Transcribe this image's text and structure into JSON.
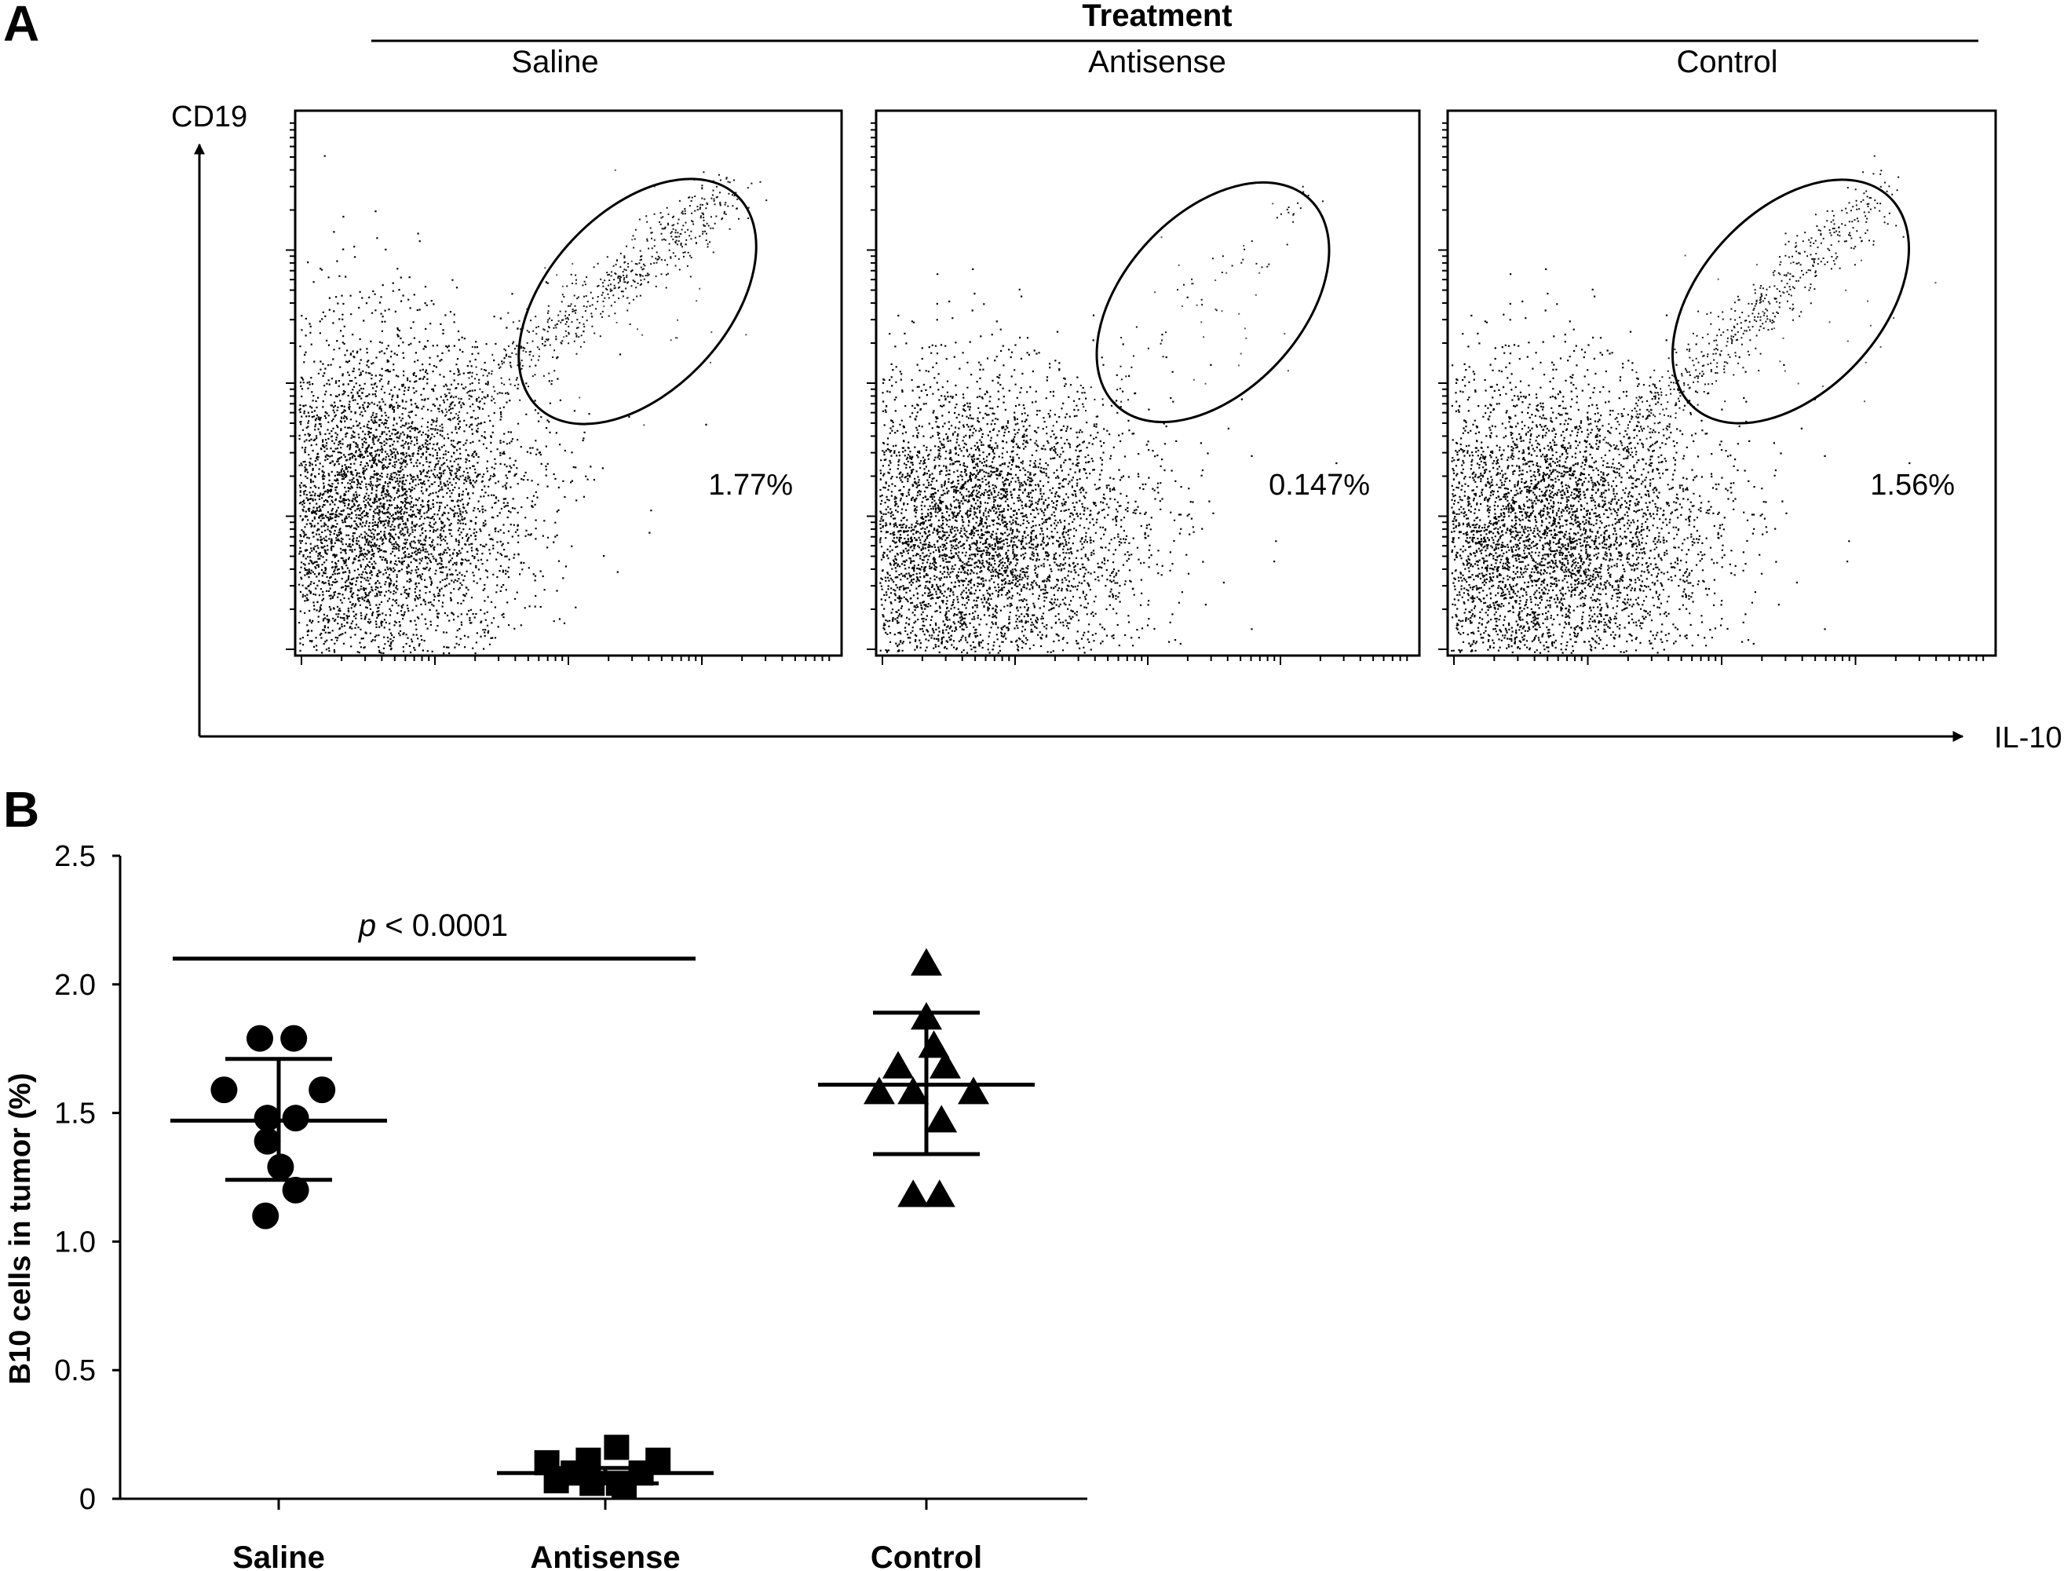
{
  "panel_a": {
    "letter": "A",
    "header": "Treatment",
    "y_axis_label": "CD19",
    "x_axis_label": "IL-10",
    "plots": [
      {
        "label": "Saline",
        "percentage": "1.77%"
      },
      {
        "label": "Antisense",
        "percentage": "0.147%"
      },
      {
        "label": "Control",
        "percentage": "1.56%"
      }
    ]
  },
  "panel_b": {
    "letter": "B",
    "significance_text": "< 0.0001",
    "significance_p": "p"
  },
  "chart_data": {
    "type": "scatter",
    "ylabel": "B10 cells in tumor (%)",
    "xlabel": "",
    "ylim": [
      0,
      2.5
    ],
    "yticks": [
      "0",
      "0.5",
      "1.0",
      "1.5",
      "2.0",
      "2.5"
    ],
    "categories": [
      "Saline",
      "Antisense",
      "Control"
    ],
    "series": [
      {
        "category": "Saline",
        "marker": "circle",
        "points": [
          {
            "offset": -0.1,
            "y": 1.79
          },
          {
            "offset": 0.08,
            "y": 1.79
          },
          {
            "offset": -0.29,
            "y": 1.59
          },
          {
            "offset": 0.23,
            "y": 1.59
          },
          {
            "offset": -0.06,
            "y": 1.48
          },
          {
            "offset": 0.09,
            "y": 1.48
          },
          {
            "offset": -0.06,
            "y": 1.39
          },
          {
            "offset": 0.01,
            "y": 1.29
          },
          {
            "offset": 0.09,
            "y": 1.2
          },
          {
            "offset": -0.07,
            "y": 1.1
          }
        ],
        "mean": 1.47,
        "sd_upper": 1.71,
        "sd_lower": 1.24
      },
      {
        "category": "Antisense",
        "marker": "square",
        "points": [
          {
            "offset": 0.06,
            "y": 0.2
          },
          {
            "offset": -0.31,
            "y": 0.14
          },
          {
            "offset": -0.09,
            "y": 0.15
          },
          {
            "offset": 0.28,
            "y": 0.15
          },
          {
            "offset": -0.17,
            "y": 0.1
          },
          {
            "offset": 0.19,
            "y": 0.1
          },
          {
            "offset": -0.26,
            "y": 0.07
          },
          {
            "offset": -0.07,
            "y": 0.06
          },
          {
            "offset": 0.07,
            "y": 0.06
          },
          {
            "offset": 0.1,
            "y": 0.05
          }
        ],
        "mean": 0.1,
        "sd_upper": 0.12,
        "sd_lower": 0.06
      },
      {
        "category": "Control",
        "marker": "triangle",
        "points": [
          {
            "offset": 0.0,
            "y": 2.08
          },
          {
            "offset": 0.0,
            "y": 1.87
          },
          {
            "offset": 0.04,
            "y": 1.76
          },
          {
            "offset": -0.15,
            "y": 1.68
          },
          {
            "offset": 0.1,
            "y": 1.68
          },
          {
            "offset": -0.25,
            "y": 1.58
          },
          {
            "offset": -0.07,
            "y": 1.58
          },
          {
            "offset": 0.25,
            "y": 1.58
          },
          {
            "offset": 0.08,
            "y": 1.47
          },
          {
            "offset": -0.07,
            "y": 1.18
          },
          {
            "offset": 0.07,
            "y": 1.18
          }
        ],
        "mean": 1.61,
        "sd_upper": 1.89,
        "sd_lower": 1.34
      }
    ]
  }
}
